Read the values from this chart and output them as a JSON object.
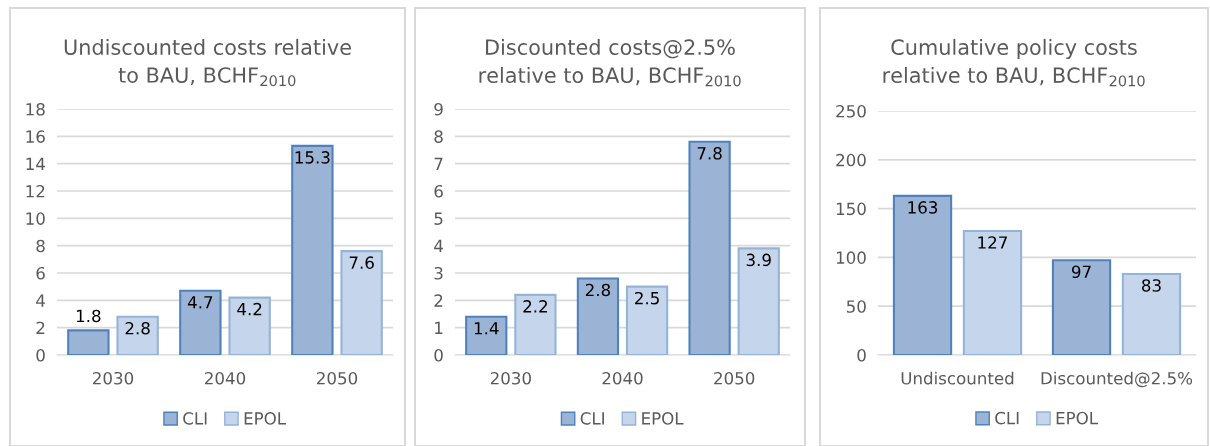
{
  "chart_data": [
    {
      "type": "bar",
      "title": "Undiscounted costs relative\nto BAU, BCHF$_{2010}$",
      "categories": [
        "2030",
        "2040",
        "2050"
      ],
      "series": [
        {
          "name": "CLI",
          "color": "#9bb4d6",
          "values": [
            1.8,
            4.7,
            15.3
          ]
        },
        {
          "name": "EPOL",
          "color": "#c5d6ec",
          "values": [
            2.8,
            4.2,
            7.6
          ]
        }
      ],
      "ylim": [
        0,
        18
      ],
      "yticks": [
        0,
        2,
        4,
        6,
        8,
        10,
        12,
        14,
        16,
        18
      ],
      "grid": "y",
      "legend": "bottom",
      "data_labels": true
    },
    {
      "type": "bar",
      "title": "Discounted costs@2.5%\nrelative to BAU, BCHF$_{2010}$",
      "categories": [
        "2030",
        "2040",
        "2050"
      ],
      "series": [
        {
          "name": "CLI",
          "color": "#9bb4d6",
          "values": [
            1.4,
            2.8,
            7.8
          ]
        },
        {
          "name": "EPOL",
          "color": "#c5d6ec",
          "values": [
            2.2,
            2.5,
            3.9
          ]
        }
      ],
      "ylim": [
        0,
        9
      ],
      "yticks": [
        0,
        1,
        2,
        3,
        4,
        5,
        6,
        7,
        8,
        9
      ],
      "grid": "y",
      "legend": "bottom",
      "data_labels": true
    },
    {
      "type": "bar",
      "title": "Cumulative policy costs\nrelative to BAU, BCHF$_{2010}$",
      "categories": [
        "Undiscounted",
        "Discounted@2.5%"
      ],
      "series": [
        {
          "name": "CLI",
          "color": "#9bb4d6",
          "values": [
            163,
            97
          ]
        },
        {
          "name": "EPOL",
          "color": "#c5d6ec",
          "values": [
            127,
            83
          ]
        }
      ],
      "ylim": [
        0,
        250
      ],
      "yticks": [
        0,
        50,
        100,
        150,
        200,
        250
      ],
      "grid": "y",
      "legend": "bottom",
      "data_labels": true
    }
  ]
}
